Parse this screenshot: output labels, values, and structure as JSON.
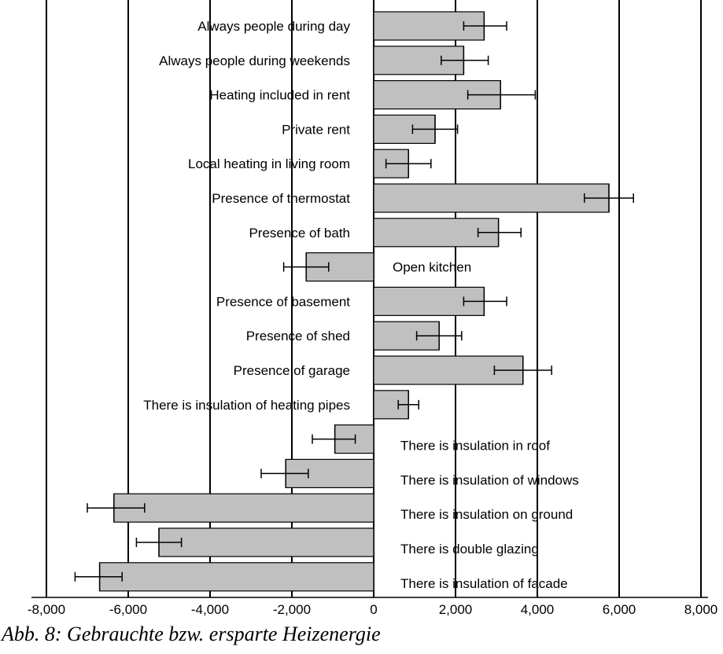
{
  "caption": "Abb. 8: Gebrauchte bzw. ersparte Heizenergie",
  "chart_data": {
    "type": "bar",
    "orientation": "horizontal",
    "xlim": [
      -8000,
      8000
    ],
    "x_ticks": [
      -8000,
      -6000,
      -4000,
      -2000,
      0,
      2000,
      4000,
      6000,
      8000
    ],
    "x_tick_labels": [
      "-8,000",
      "-6,000",
      "-4,000",
      "-2,000",
      "0",
      "2,000",
      "4,000",
      "6,000",
      "8,000"
    ],
    "grid": "vertical",
    "bar_color": "#c0c0c0",
    "categories": [
      "Always people during day",
      "Always people during weekends",
      "Heating included in rent",
      "Private rent",
      "Local heating in living room",
      "Presence of thermostat",
      "Presence of bath",
      "Open kitchen",
      "Presence of basement",
      "Presence of shed",
      "Presence of garage",
      "There is insulation of heating pipes",
      "There is insulation in roof",
      "There is insulation of windows",
      "There is insulation on ground",
      "There is double glazing",
      "There is insulation of facade"
    ],
    "values": [
      2700,
      2200,
      3100,
      1500,
      850,
      5750,
      3050,
      -1650,
      2700,
      1600,
      3650,
      850,
      -950,
      -2150,
      -6350,
      -5250,
      -6700
    ],
    "error_low": [
      2200,
      1650,
      2300,
      950,
      300,
      5150,
      2550,
      -2200,
      2200,
      1050,
      2950,
      600,
      -1500,
      -2750,
      -7000,
      -5800,
      -7300
    ],
    "error_high": [
      3250,
      2800,
      3950,
      2050,
      1400,
      6350,
      3600,
      -1100,
      3250,
      2150,
      4350,
      1100,
      -450,
      -1600,
      -5600,
      -4700,
      -6150
    ]
  }
}
